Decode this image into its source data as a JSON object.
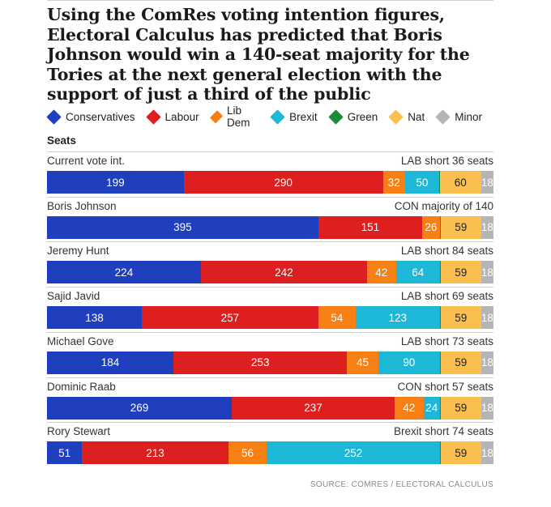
{
  "title": "Using the ComRes voting intention figures, Electoral Calculus has predicted that Boris Johnson would win a 140-seat majority for the Tories at the next general election with the support of just a third of the public",
  "legend": [
    {
      "name": "Conservatives",
      "color": "#1f3fbf"
    },
    {
      "name": "Labour",
      "color": "#dd1f1f"
    },
    {
      "name": "Lib Dem",
      "color": "#f77f13"
    },
    {
      "name": "Brexit",
      "color": "#1db7d8"
    },
    {
      "name": "Green",
      "color": "#1e8b3a"
    },
    {
      "name": "Nat",
      "color": "#fbbf4f"
    },
    {
      "name": "Minor",
      "color": "#b5b5b5"
    }
  ],
  "chart_data": {
    "type": "bar",
    "orientation": "horizontal",
    "stacked": true,
    "ylabel": "Seats",
    "total_seats": 650,
    "series_names": [
      "Conservatives",
      "Labour",
      "Lib Dem",
      "Brexit",
      "Green",
      "Nat",
      "Minor"
    ],
    "rows": [
      {
        "name": "Current vote int.",
        "note": "LAB short 36 seats",
        "values": [
          199,
          290,
          32,
          50,
          1,
          60,
          18
        ]
      },
      {
        "name": "Boris Johnson",
        "note": "CON majority of 140",
        "values": [
          395,
          151,
          26,
          0,
          1,
          59,
          18
        ]
      },
      {
        "name": "Jeremy Hunt",
        "note": "LAB short 84 seats",
        "values": [
          224,
          242,
          42,
          64,
          1,
          59,
          18
        ]
      },
      {
        "name": "Sajid Javid",
        "note": "LAB short 69 seats",
        "values": [
          138,
          257,
          54,
          123,
          1,
          59,
          18
        ]
      },
      {
        "name": "Michael Gove",
        "note": "LAB short 73 seats",
        "values": [
          184,
          253,
          45,
          90,
          1,
          59,
          18
        ]
      },
      {
        "name": "Dominic Raab",
        "note": "CON short 57 seats",
        "values": [
          269,
          237,
          42,
          24,
          1,
          59,
          18
        ]
      },
      {
        "name": "Rory Stewart",
        "note": "Brexit short 74 seats",
        "values": [
          51,
          213,
          56,
          252,
          1,
          59,
          18
        ]
      }
    ],
    "source": "SOURCE: COMRES / ELECTORAL CALCULUS"
  }
}
